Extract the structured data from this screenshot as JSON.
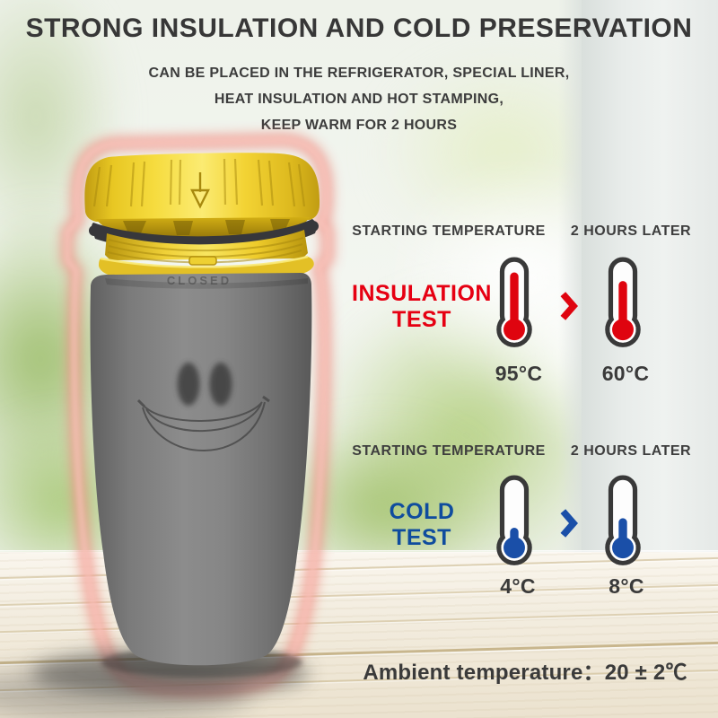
{
  "page": {
    "title": "STRONG INSULATION AND COLD PRESERVATION",
    "subtitle_lines": [
      "CAN BE PLACED IN THE REFRIGERATOR, SPECIAL LINER,",
      "HEAT INSULATION AND HOT STAMPING,",
      "KEEP WARM FOR 2 HOURS"
    ]
  },
  "product": {
    "description": "gray tumbler with yellow screw lid and smiley face",
    "lid_text": "CLOSED",
    "lid_color": "#f2d02e",
    "body_color": "#7e7e7e",
    "glow_color": "#ef9186"
  },
  "insulation_test": {
    "label_line1": "INSULATION",
    "label_line2": "TEST",
    "label_color": "#e60012",
    "start_header": "STARTING TEMPERATURE",
    "end_header": "2 HOURS LATER",
    "start_temp": "95°C",
    "end_temp": "60°C",
    "start_level": 0.88,
    "end_level": 0.72,
    "mercury_color": "#df040f"
  },
  "cold_test": {
    "label_line1": "COLD",
    "label_line2": "TEST",
    "label_color": "#0f4c9e",
    "start_header": "STARTING TEMPERATURE",
    "end_header": "2 HOURS LATER",
    "start_temp": "4°C",
    "end_temp": "8°C",
    "start_level": 0.18,
    "end_level": 0.36,
    "mercury_color": "#1a4fa8"
  },
  "footer": {
    "ambient_label": "Ambient temperature：",
    "ambient_value": "20 ± 2℃"
  }
}
